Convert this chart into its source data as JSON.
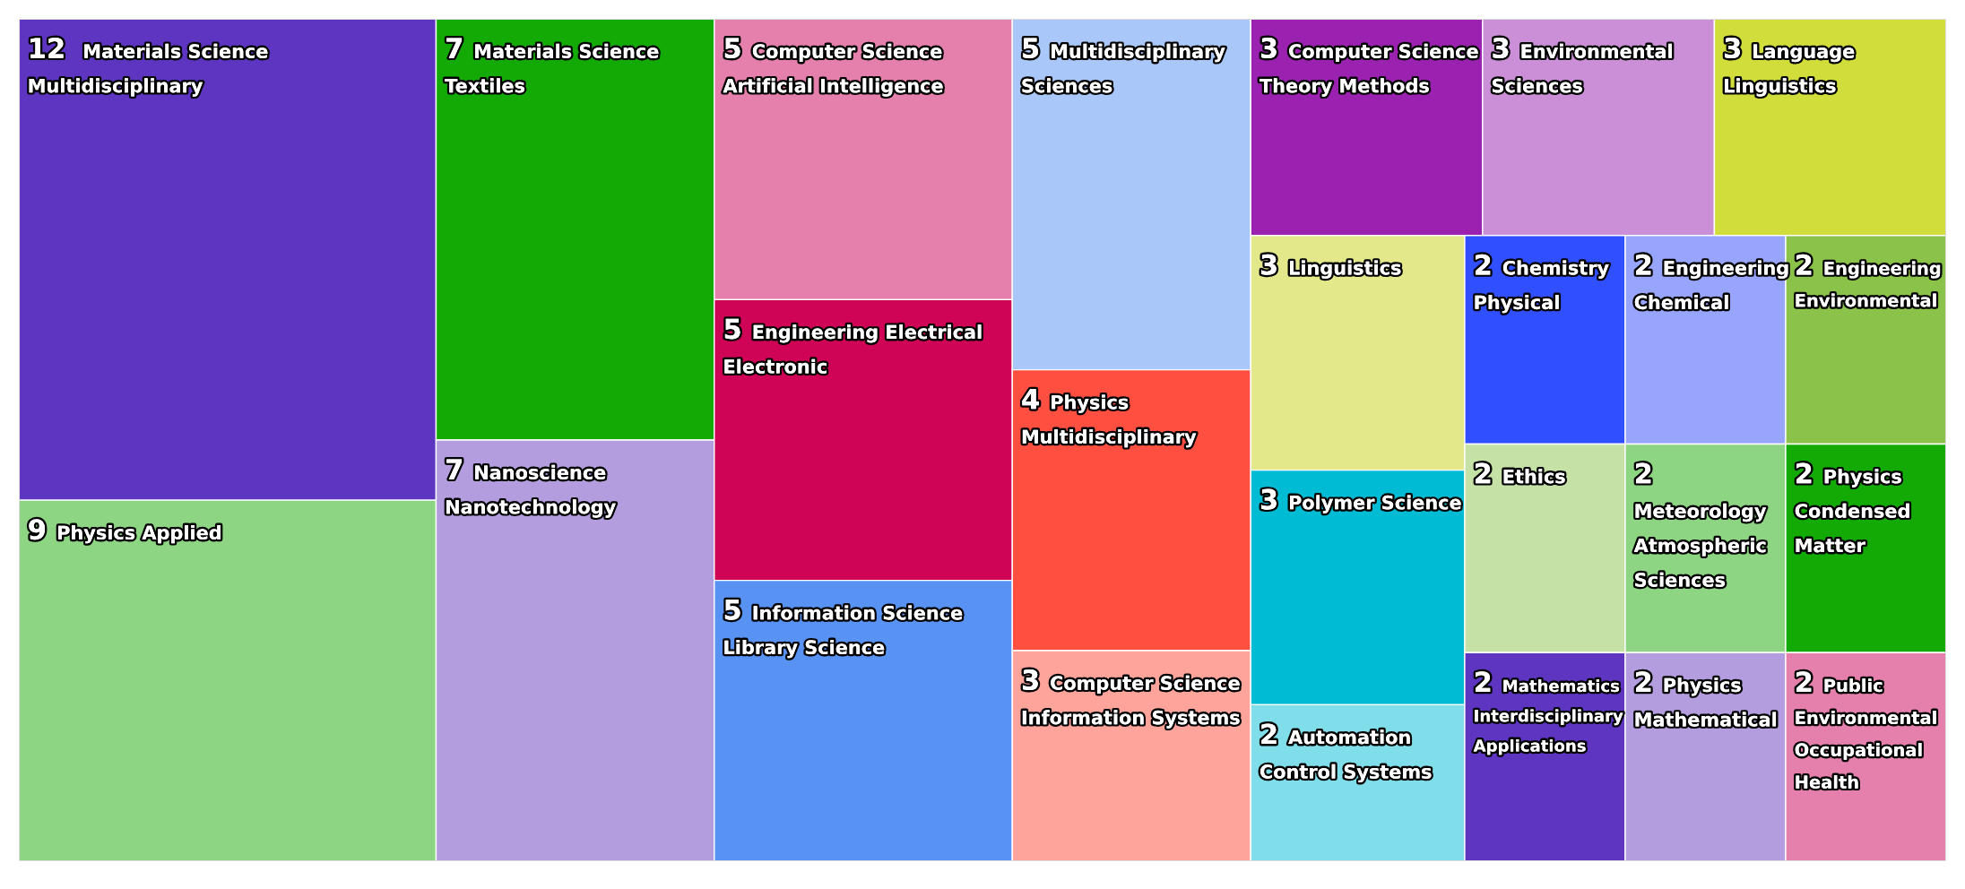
{
  "chart_data": {
    "type": "other",
    "data_labels": true,
    "categories": [
      "Materials Science Multidisciplinary",
      "Physics Applied",
      "Materials Science Textiles",
      "Nanoscience Nanotechnology",
      "Computer Science Artificial Intelligence",
      "Engineering Electrical Electronic",
      "Information Science Library Science",
      "Multidisciplinary Sciences",
      "Physics Multidisciplinary",
      "Computer Science Information Systems",
      "Computer Science Theory Methods",
      "Environmental Sciences",
      "Language Linguistics",
      "Linguistics",
      "Polymer Science",
      "Automation Control Systems",
      "Chemistry Physical",
      "Engineering Chemical",
      "Engineering Environmental",
      "Ethics",
      "Mathematics Interdisciplinary Applications",
      "Meteorology Atmospheric Sciences",
      "Physics Condensed Matter",
      "Physics Mathematical",
      "Public Environmental Occupational Health"
    ],
    "values": [
      12,
      9,
      7,
      7,
      5,
      5,
      5,
      5,
      4,
      3,
      3,
      3,
      3,
      3,
      3,
      2,
      2,
      2,
      2,
      2,
      2,
      2,
      2,
      2,
      2
    ],
    "colors": [
      "#5e35c1",
      "#8dd582",
      "#14aa06",
      "#b39ddf",
      "#e57fab",
      "#d00457",
      "#5893f4",
      "#aac7f9",
      "#ff4f40",
      "#ffa49b",
      "#9b22b0",
      "#ca8fd6",
      "#d1dd3a",
      "#e3e98a",
      "#00bbd4",
      "#80deea",
      "#304ffe",
      "#97a5fc",
      "#8bc34a",
      "#c5e1a5",
      "#5e35c1",
      "#8dd582",
      "#14aa06",
      "#b39ddf",
      "#e57fab"
    ]
  }
}
